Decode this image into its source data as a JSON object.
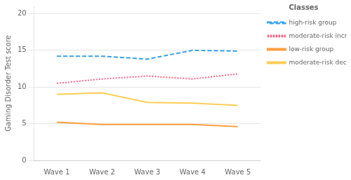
{
  "chart_data": {
    "type": "line",
    "categories": [
      "Wave 1",
      "Wave 2",
      "Wave 3",
      "Wave 4",
      "Wave 5"
    ],
    "series": [
      {
        "name": "high-risk group",
        "values": [
          14.2,
          14.2,
          13.8,
          15.0,
          14.9
        ],
        "line_style": "dashed"
      },
      {
        "name": "moderate-risk increase group",
        "values": [
          10.5,
          11.1,
          11.5,
          11.1,
          11.8
        ],
        "line_style": "dotted"
      },
      {
        "name": "low-risk group",
        "values": [
          5.2,
          4.9,
          4.9,
          4.9,
          4.6
        ],
        "line_style": "solid"
      },
      {
        "name": "moderate-risk decrease group",
        "values": [
          9.0,
          9.2,
          7.9,
          7.8,
          7.5
        ],
        "line_style": "solid"
      }
    ],
    "ylabel": "Gaming Disorder Test score",
    "legend_title": "Classes",
    "legend": "right",
    "ylim": [
      0,
      21
    ],
    "yticks": [
      0,
      5,
      10,
      15,
      20
    ],
    "grid": true
  }
}
